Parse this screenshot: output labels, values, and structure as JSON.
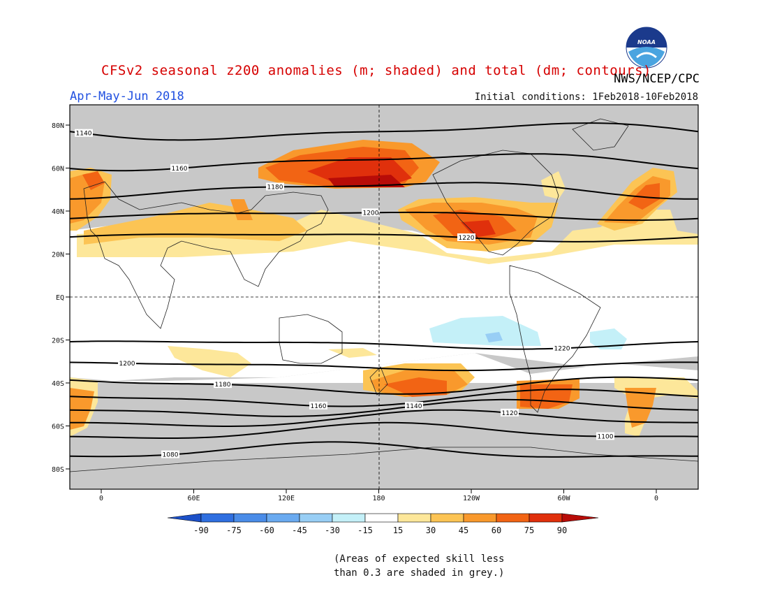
{
  "title": "CFSv2 seasonal z200 anomalies (m; shaded) and total (dm; contours)",
  "agency": "NWS/NCEP/CPC",
  "logo_text": "NOAA",
  "season": "Apr-May-Jun 2018",
  "initial_conditions": "Initial conditions: 1Feb2018-10Feb2018",
  "note_line1": "(Areas of expected skill less",
  "note_line2": "than 0.3 are shaded in grey.)",
  "map": {
    "lat_labels": [
      "80N",
      "60N",
      "40N",
      "20N",
      "EQ",
      "20S",
      "40S",
      "60S",
      "80S"
    ],
    "lon_labels": [
      "0",
      "60E",
      "120E",
      "180",
      "120W",
      "60W",
      "0"
    ],
    "lon_values": [
      0,
      60,
      120,
      180,
      240,
      300,
      360
    ],
    "lat_values": [
      80,
      60,
      40,
      20,
      0,
      -20,
      -40,
      -60,
      -80
    ],
    "skill_shade_color": "#c8c8c8",
    "contours": [
      {
        "label": "1140",
        "lat": 77
      },
      {
        "label": "1160",
        "lat": 63
      },
      {
        "label": "1180",
        "lat": 50
      },
      {
        "label": "1200",
        "lat": 38
      },
      {
        "label": "1220",
        "lat": 28
      },
      {
        "label": "1220",
        "lat": -22
      },
      {
        "label": "1200",
        "lat": -32
      },
      {
        "label": "1180",
        "lat": -41
      },
      {
        "label": "1160",
        "lat": -47
      },
      {
        "label": "1140",
        "lat": -52
      },
      {
        "label": "1120",
        "lat": -57
      },
      {
        "label": "1100",
        "lat": -63
      },
      {
        "label": "1080",
        "lat": -72
      }
    ]
  },
  "colorbar": {
    "labels": [
      "-90",
      "-75",
      "-60",
      "-45",
      "-30",
      "-15",
      "15",
      "30",
      "45",
      "60",
      "75",
      "90"
    ],
    "colors": [
      "#1c50c8",
      "#2f6fe0",
      "#4a8ce8",
      "#6aaaf0",
      "#98cef5",
      "#c4f0f8",
      "#ffffff",
      "#fde79a",
      "#fcc454",
      "#f9992c",
      "#f26414",
      "#e0300c",
      "#b80c08"
    ]
  }
}
